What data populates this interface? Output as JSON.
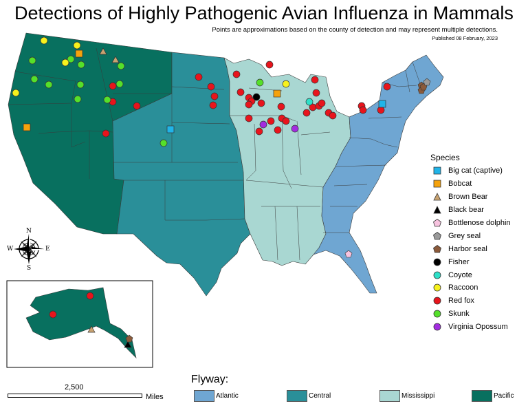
{
  "title": "Detections of Highly Pathogenic Avian Influenza in Mammals",
  "subtitle": "Points are approximations based on the county of detection and may represent multiple detections.",
  "published": "Published 08 February, 2023",
  "flyway": {
    "title": "Flyway:",
    "items": [
      {
        "label": "Atlantic",
        "color": "#6fa6d2"
      },
      {
        "label": "Central",
        "color": "#2a8f99"
      },
      {
        "label": "Mississippi",
        "color": "#a9d7d2"
      },
      {
        "label": "Pacific",
        "color": "#08705f"
      }
    ]
  },
  "species": {
    "title": "Species",
    "items": [
      {
        "label": "Big cat (captive)",
        "shape": "square",
        "color": "#20b4e8"
      },
      {
        "label": "Bobcat",
        "shape": "square",
        "color": "#f5a20c"
      },
      {
        "label": "Brown Bear",
        "shape": "triangle",
        "color": "#c8a270"
      },
      {
        "label": "Black bear",
        "shape": "triangle",
        "color": "#000000"
      },
      {
        "label": "Bottlenose dolphin",
        "shape": "pentagon",
        "color": "#f7c3df"
      },
      {
        "label": "Grey seal",
        "shape": "pentagon",
        "color": "#9a9a9a"
      },
      {
        "label": "Harbor seal",
        "shape": "pentagon",
        "color": "#8b5a3a"
      },
      {
        "label": "Fisher",
        "shape": "circle",
        "color": "#000000"
      },
      {
        "label": "Coyote",
        "shape": "circle",
        "color": "#2ee0c8"
      },
      {
        "label": "Raccoon",
        "shape": "circle",
        "color": "#f7f21d"
      },
      {
        "label": "Red fox",
        "shape": "circle",
        "color": "#e8141c"
      },
      {
        "label": "Skunk",
        "shape": "circle",
        "color": "#55e02a"
      },
      {
        "label": "Virginia Opossum",
        "shape": "circle",
        "color": "#a32ce0"
      }
    ]
  },
  "scale": {
    "value": "2,500",
    "unit": "Miles"
  },
  "compass": {
    "n": "N",
    "s": "S",
    "e": "E",
    "w": "W"
  }
}
